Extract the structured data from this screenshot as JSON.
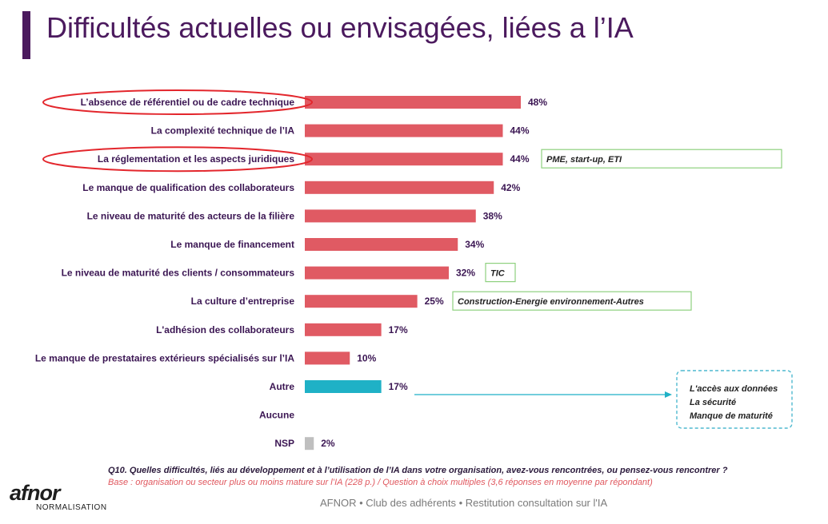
{
  "title": "Difficultés actuelles ou envisagées, liées a l’IA",
  "colors": {
    "main": "#e05a63",
    "other": "#1fb1c6",
    "nsp": "#bfbfbf",
    "label": "#3b1653",
    "circle": "#e3262c",
    "note_border": "#8ed07e",
    "callout_border": "#4fb9cf"
  },
  "chart_data": {
    "type": "bar",
    "orientation": "horizontal",
    "categories": [
      "L’absence de référentiel ou de cadre technique",
      "La complexité technique de l’IA",
      "La réglementation et les aspects juridiques",
      "Le manque de qualification des collaborateurs",
      "Le niveau de maturité des acteurs de la filière",
      "Le manque de financement",
      "Le niveau de maturité des clients / consommateurs",
      "La culture d’entreprise",
      "L'adhésion des collaborateurs",
      "Le manque de prestataires extérieurs spécialisés sur l’IA",
      "Autre",
      "Aucune",
      "NSP"
    ],
    "values": [
      48,
      44,
      44,
      42,
      38,
      34,
      32,
      25,
      17,
      10,
      17,
      null,
      2
    ],
    "value_labels": [
      "48%",
      "44%",
      "44%",
      "42%",
      "38%",
      "34%",
      "32%",
      "25%",
      "17%",
      "10%",
      "17%",
      "",
      "2%"
    ],
    "bar_colors": [
      "main",
      "main",
      "main",
      "main",
      "main",
      "main",
      "main",
      "main",
      "main",
      "main",
      "other",
      "main",
      "nsp"
    ],
    "circled": [
      0,
      2
    ],
    "xlim": [
      0,
      52
    ],
    "grid": false,
    "notes": [
      {
        "row": 2,
        "text": "PME, start-up, ETI"
      },
      {
        "row": 6,
        "text": "TIC"
      },
      {
        "row": 7,
        "text": "Construction-Energie environnement-Autres"
      }
    ],
    "callout": {
      "row": 10,
      "lines": [
        "L'accès aux données",
        "La sécurité",
        "Manque de maturité"
      ]
    }
  },
  "footer": {
    "question": "Q10. Quelles difficultés, liés au développement et à l’utilisation de l’IA dans votre organisation, avez-vous rencontrées, ou pensez-vous rencontrer ?",
    "base": "Base : organisation ou secteur plus ou moins mature sur l’IA (228 p.) / Question à choix multiples (3,6 réponses en moyenne par répondant)",
    "credit": "AFNOR • Club des adhérents  • Restitution consultation sur l'IA"
  },
  "logo": {
    "name": "afnor",
    "sub": "NORMALISATION"
  }
}
